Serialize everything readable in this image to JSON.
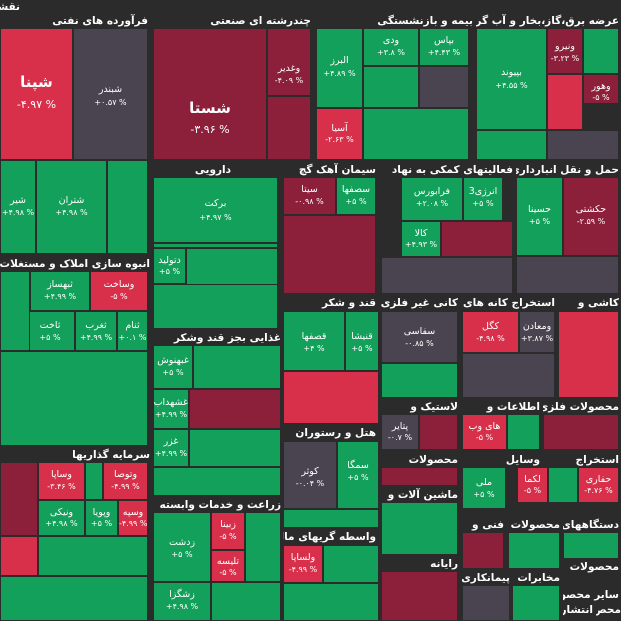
{
  "colors": {
    "green": "#12a05a",
    "red": "#d8304a",
    "maroon": "#8c1f3a",
    "dark": "#4a4450",
    "background": "#2b2b2b",
    "text": "#ffffff"
  },
  "sectors": [
    {
      "id": "s1",
      "label": "نقشه باز"
    },
    {
      "id": "s2",
      "label": "فرآورده های نفتی"
    },
    {
      "id": "s3",
      "label": "چندرشته ای صنعتی"
    },
    {
      "id": "s4",
      "label": "بیمه و بازنشستگی"
    },
    {
      "id": "s5",
      "label": "عرضه برق،گاز،بخار و آب گرم"
    },
    {
      "id": "s6",
      "label": "دارویی"
    },
    {
      "id": "s7",
      "label": "سیمان آهک گچ"
    },
    {
      "id": "s8",
      "label": "فعالیتهای کمکی به نهاد"
    },
    {
      "id": "s9",
      "label": "حمل و نقل انبارداری و"
    },
    {
      "id": "s10",
      "label": "انبوه سازی املاک و مستغلات"
    },
    {
      "id": "s11",
      "label": "قند و شکر"
    },
    {
      "id": "s12",
      "label": "کانی غیر فلزی"
    },
    {
      "id": "s13",
      "label": "استخراج کانه های"
    },
    {
      "id": "s14",
      "label": "کاشی و"
    },
    {
      "id": "s15",
      "label": "غذایی بجز قند وشکر"
    },
    {
      "id": "s16",
      "label": "لاستیک و"
    },
    {
      "id": "s17",
      "label": "اطلاعات و"
    },
    {
      "id": "s18",
      "label": "محصولات فلزی"
    },
    {
      "id": "s19",
      "label": "هتل و رستوران"
    },
    {
      "id": "s20",
      "label": "سرمایه گذاریها"
    },
    {
      "id": "s21",
      "label": "محصولات"
    },
    {
      "id": "s22",
      "label": "وسایل"
    },
    {
      "id": "s23",
      "label": "استخراج"
    },
    {
      "id": "s24",
      "label": "ماشین آلات و"
    },
    {
      "id": "s25",
      "label": "زراعت و خدمات وابسته"
    },
    {
      "id": "s26",
      "label": "واسطه گریهای مالی و"
    },
    {
      "id": "s27",
      "label": "فنی و"
    },
    {
      "id": "s28",
      "label": "محصولات"
    },
    {
      "id": "s29",
      "label": "دستگاههای"
    },
    {
      "id": "s30",
      "label": "رایانه"
    },
    {
      "id": "s31",
      "label": "پیمانکاری"
    },
    {
      "id": "s32",
      "label": "مخابرات"
    },
    {
      "id": "s33",
      "label": "محصولات"
    },
    {
      "id": "s34",
      "label": "سایر محصولا"
    },
    {
      "id": "s35",
      "label": "انتشار چاپ"
    },
    {
      "id": "s36",
      "label": "محص"
    }
  ],
  "tiles": [
    {
      "id": "t1",
      "symbol": "شپنا",
      "change": "-۴.۹۷ %"
    },
    {
      "id": "t2",
      "symbol": "شبندر",
      "change": "+۰.۵۷ %"
    },
    {
      "id": "t3",
      "symbol": "شستا",
      "change": "-۳.۹۶ %"
    },
    {
      "id": "t4",
      "symbol": "وغدیر",
      "change": "-۴.۰۹ %"
    },
    {
      "id": "t5",
      "symbol": "البرز",
      "change": "+۴.۸۹ %"
    },
    {
      "id": "t6",
      "symbol": "ودی",
      "change": "+۳.۸ %"
    },
    {
      "id": "t7",
      "symbol": "بپاس",
      "change": "+۴.۴۳ %"
    },
    {
      "id": "t8",
      "symbol": "آسیا",
      "change": "-۲.۶۳ %"
    },
    {
      "id": "t9",
      "symbol": "بپیوند",
      "change": "+۴.۵۵ %"
    },
    {
      "id": "t10",
      "symbol": "ونیرو",
      "change": "-۳.۲۳ %"
    },
    {
      "id": "t11",
      "symbol": "وهور",
      "change": "-۵ %"
    },
    {
      "id": "t12",
      "symbol": "شیر",
      "change": "+۴.۹۸ %"
    },
    {
      "id": "t13",
      "symbol": "شتران",
      "change": "+۴.۹۸ %"
    },
    {
      "id": "t14",
      "symbol": "برکت",
      "change": "+۴.۹۷ %"
    },
    {
      "id": "t15",
      "symbol": "سیتا",
      "change": "-۰.۹۸ %"
    },
    {
      "id": "t16",
      "symbol": "سصفها",
      "change": "+۵ %"
    },
    {
      "id": "t17",
      "symbol": "فرابورس",
      "change": "+۲.۰۸ %"
    },
    {
      "id": "t18",
      "symbol": "انرژی3",
      "change": "+۵ %"
    },
    {
      "id": "t19",
      "symbol": "حسینا",
      "change": "+۵ %"
    },
    {
      "id": "t20",
      "symbol": "حکشتی",
      "change": "-۲.۵۹ %"
    },
    {
      "id": "t21",
      "symbol": "کالا",
      "change": "+۴.۹۳ %"
    },
    {
      "id": "t22",
      "symbol": "دتولید",
      "change": "+۵ %"
    },
    {
      "id": "t23",
      "symbol": "ثبهساز",
      "change": "+۴.۹۹ %"
    },
    {
      "id": "t24",
      "symbol": "وساخت",
      "change": "-۵ %"
    },
    {
      "id": "t25",
      "symbol": "ثاخت",
      "change": "+۵ %"
    },
    {
      "id": "t26",
      "symbol": "ثغرب",
      "change": "+۴.۹۹ %"
    },
    {
      "id": "t27",
      "symbol": "ثنام",
      "change": "+۰.۱ %"
    },
    {
      "id": "t28",
      "symbol": "قصفها",
      "change": "+۴ %"
    },
    {
      "id": "t29",
      "symbol": "قنیشا",
      "change": "+۵ %"
    },
    {
      "id": "t30",
      "symbol": "سفاسی",
      "change": "-۰.۸۵ %"
    },
    {
      "id": "t31",
      "symbol": "کگل",
      "change": "-۴.۹۸ %"
    },
    {
      "id": "t32",
      "symbol": "ومعادن",
      "change": "+۳.۸۷ %"
    },
    {
      "id": "t33",
      "symbol": "غبهنوش",
      "change": "+۵ %"
    },
    {
      "id": "t34",
      "symbol": "غشهداب",
      "change": "+۴.۹۹ %"
    },
    {
      "id": "t35",
      "symbol": "غزر",
      "change": "+۴.۹۹ %"
    },
    {
      "id": "t36",
      "symbol": "پتایر",
      "change": "-۰.۷ %"
    },
    {
      "id": "t37",
      "symbol": "های وب",
      "change": "-۵ %"
    },
    {
      "id": "t38",
      "symbol": "کوثر",
      "change": "-۰.۰۴ %"
    },
    {
      "id": "t39",
      "symbol": "سمگا",
      "change": "+۵ %"
    },
    {
      "id": "t40",
      "symbol": "ملی",
      "change": "+۵ %"
    },
    {
      "id": "t41",
      "symbol": "لکما",
      "change": "-۵ %"
    },
    {
      "id": "t42",
      "symbol": "حفاری",
      "change": "-۴.۷۶ %"
    },
    {
      "id": "t43",
      "symbol": "وتوصا",
      "change": "-۴.۹۹ %"
    },
    {
      "id": "t44",
      "symbol": "وساپا",
      "change": "-۳.۴۶ %"
    },
    {
      "id": "t45",
      "symbol": "ونیکی",
      "change": "+۴.۹۸ %"
    },
    {
      "id": "t46",
      "symbol": "وپویا",
      "change": "+۵ %"
    },
    {
      "id": "t47",
      "symbol": "وسپه",
      "change": "-۴.۹۹ %"
    },
    {
      "id": "t48",
      "symbol": "زدشت",
      "change": "+۵ %"
    },
    {
      "id": "t49",
      "symbol": "زبینا",
      "change": "-۵ %"
    },
    {
      "id": "t50",
      "symbol": "تلیسه",
      "change": "-۵ %"
    },
    {
      "id": "t51",
      "symbol": "زشگزا",
      "change": "+۴.۹۸ %"
    },
    {
      "id": "t52",
      "symbol": "ولساپا",
      "change": "-۴.۹۹ %"
    }
  ]
}
